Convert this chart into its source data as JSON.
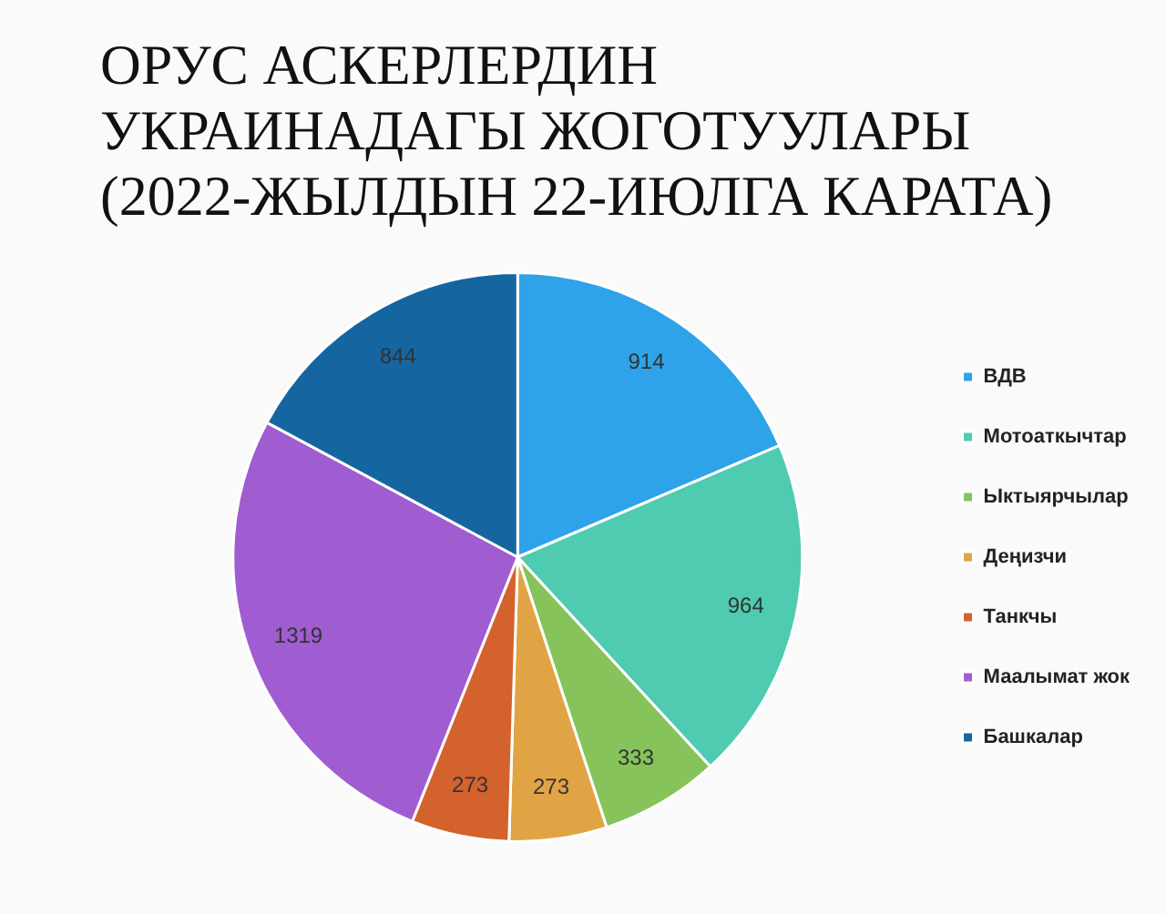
{
  "chart_data": {
    "type": "pie",
    "title": "ОРУС АСКЕРЛЕРДИН\nУКРАИНАДАГЫ ЖОГОТУУЛАРЫ\n(2022-ЖЫЛДЫН 22-ИЮЛГА КАРАТА)",
    "categories": [
      "ВДВ",
      "Мотоаткычтар",
      "Ыктыярчылар",
      "Деңизчи",
      "Танкчы",
      "Маалымат жок",
      "Башкалар"
    ],
    "values": [
      914,
      964,
      333,
      273,
      273,
      1319,
      844
    ],
    "colors": [
      "#2ea3ea",
      "#4ecbb0",
      "#86c35a",
      "#e0a444",
      "#d4622d",
      "#a05cd1",
      "#1566a0"
    ],
    "data_labels": true,
    "legend": "right"
  }
}
